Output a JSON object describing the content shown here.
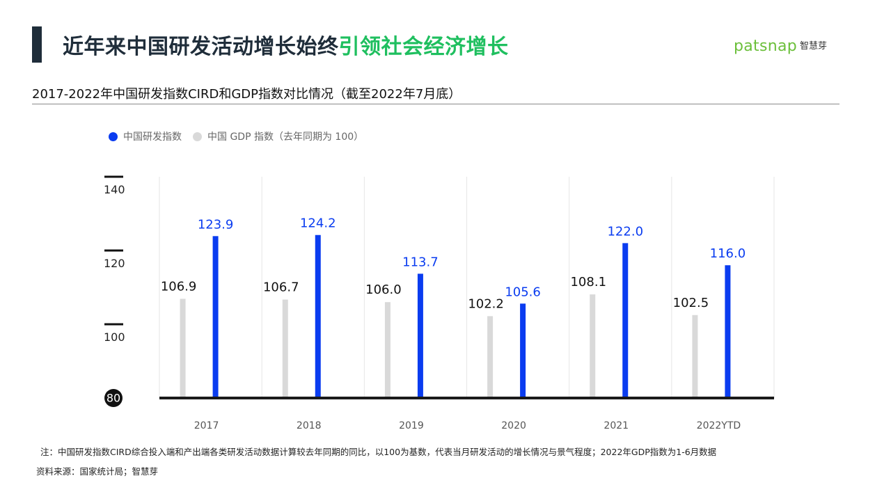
{
  "header": {
    "title_main": "近年来中国研发活动增长始终",
    "title_accent": "引领社会经济增长",
    "brand_word": "patsnap",
    "brand_cn": "智慧芽"
  },
  "subtitle": "2017-2022年中国研发指数CIRD和GDP指数对比情况（截至2022年7月底）",
  "colors": {
    "cird": "#0a3cf0",
    "gdp": "#d9d9d9",
    "accent": "#1fbf5f",
    "title": "#1f2d3a"
  },
  "chart_data": {
    "type": "bar",
    "categories": [
      "2017",
      "2018",
      "2019",
      "2020",
      "2021",
      "2022YTD"
    ],
    "series": [
      {
        "name": "中国 GDP 指数（去年同期为 100）",
        "values": [
          106.9,
          106.7,
          106.0,
          102.2,
          108.1,
          102.5
        ]
      },
      {
        "name": "中国研发指数",
        "values": [
          123.9,
          124.2,
          113.7,
          105.6,
          122.0,
          116.0
        ]
      }
    ],
    "yticks": [
      "80",
      "100",
      "120",
      "140"
    ],
    "ylim": [
      80,
      140
    ],
    "grid": "vertical",
    "legend": "top-left"
  },
  "footnotes": {
    "note": "注：中国研发指数CIRD综合投入端和产出端各类研发活动数据计算较去年同期的同比，以100为基数，代表当月研发活动的增长情况与景气程度；2022年GDP指数为1-6月数据",
    "source": "资料来源：国家统计局；智慧芽"
  }
}
